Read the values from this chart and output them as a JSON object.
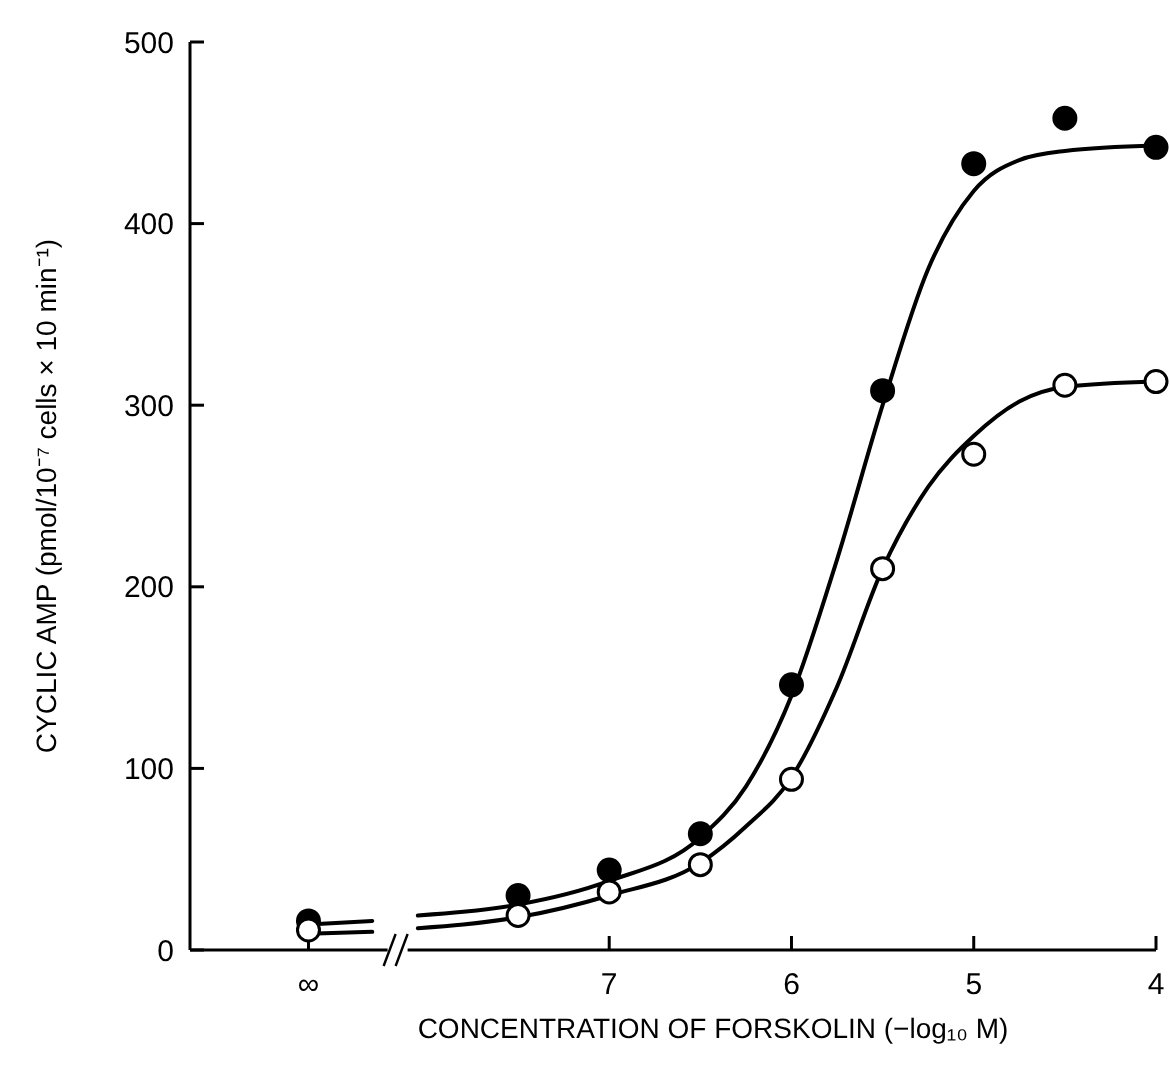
{
  "chart_data": {
    "type": "scatter",
    "xlabel": "CONCENTRATION OF FORSKOLIN (−log₁₀ M)",
    "ylabel": "CYCLIC AMP (pmol/10⁻⁷ cells × 10 min⁻¹)",
    "xlim": [
      9.3,
      4
    ],
    "xticks": [
      {
        "value": 8.65,
        "label": "∞"
      },
      7,
      6,
      5,
      4
    ],
    "ylim": [
      0,
      500
    ],
    "yticks": [
      0,
      100,
      200,
      300,
      400,
      500
    ],
    "grid": false,
    "marker": "circle",
    "series": [
      {
        "type": "line",
        "color": "#000000",
        "line_style": "solid",
        "marker": "none",
        "x": [
          8.65,
          8.3,
          null,
          8.05,
          7.8,
          7.5,
          7.0,
          6.5,
          6.25,
          6.0,
          5.75,
          5.5,
          5.25,
          5.0,
          4.75,
          4.5,
          4.0
        ],
        "values": [
          14,
          16,
          null,
          19,
          21,
          25,
          38,
          62,
          90,
          140,
          215,
          300,
          375,
          418,
          435,
          440,
          443
        ]
      },
      {
        "type": "line",
        "color": "#000000",
        "line_style": "solid",
        "marker": "none",
        "x": [
          8.65,
          8.3,
          null,
          8.05,
          7.8,
          7.5,
          7.0,
          6.5,
          6.25,
          6.0,
          5.75,
          5.5,
          5.25,
          5.0,
          4.75,
          4.5,
          4.0
        ],
        "values": [
          9,
          10,
          null,
          12,
          14,
          18,
          30,
          48,
          68,
          95,
          145,
          210,
          255,
          283,
          302,
          310,
          313
        ]
      },
      {
        "color": "#000000",
        "x": [
          8.65,
          7.5,
          7.0,
          6.5,
          6.0,
          5.5,
          5.0,
          4.5,
          4.0
        ],
        "values": [
          16,
          30,
          44,
          64,
          146,
          308,
          433,
          458,
          442
        ]
      },
      {
        "color": "#ffffff",
        "x": [
          8.65,
          7.5,
          7.0,
          6.5,
          6.0,
          5.5,
          5.0,
          4.5,
          4.0
        ],
        "values": [
          11,
          19,
          32,
          47,
          94,
          210,
          273,
          311,
          313
        ]
      }
    ]
  }
}
